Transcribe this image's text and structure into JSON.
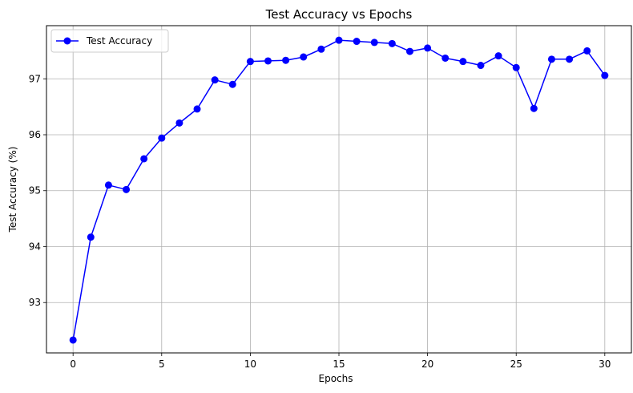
{
  "chart_data": {
    "type": "line",
    "title": "Test Accuracy vs Epochs",
    "xlabel": "Epochs",
    "ylabel": "Test Accuracy (%)",
    "xlim": [
      -1.5,
      31.5
    ],
    "ylim": [
      92.1,
      97.95
    ],
    "xticks": [
      0,
      5,
      10,
      15,
      20,
      25,
      30
    ],
    "yticks": [
      93,
      94,
      95,
      96,
      97
    ],
    "grid": true,
    "legend_position": "top-left",
    "series": [
      {
        "name": "Test Accuracy",
        "color": "#0000ff",
        "marker": "circle",
        "x": [
          0,
          1,
          2,
          3,
          4,
          5,
          6,
          7,
          8,
          9,
          10,
          11,
          12,
          13,
          14,
          15,
          16,
          17,
          18,
          19,
          20,
          21,
          22,
          23,
          24,
          25,
          26,
          27,
          28,
          29,
          30
        ],
        "y": [
          92.33,
          94.17,
          95.1,
          95.02,
          95.57,
          95.94,
          96.21,
          96.46,
          96.98,
          96.9,
          97.31,
          97.32,
          97.33,
          97.39,
          97.53,
          97.69,
          97.67,
          97.65,
          97.63,
          97.49,
          97.55,
          97.37,
          97.31,
          97.24,
          97.41,
          97.2,
          96.47,
          97.35,
          97.35,
          97.5,
          97.06
        ]
      }
    ]
  }
}
